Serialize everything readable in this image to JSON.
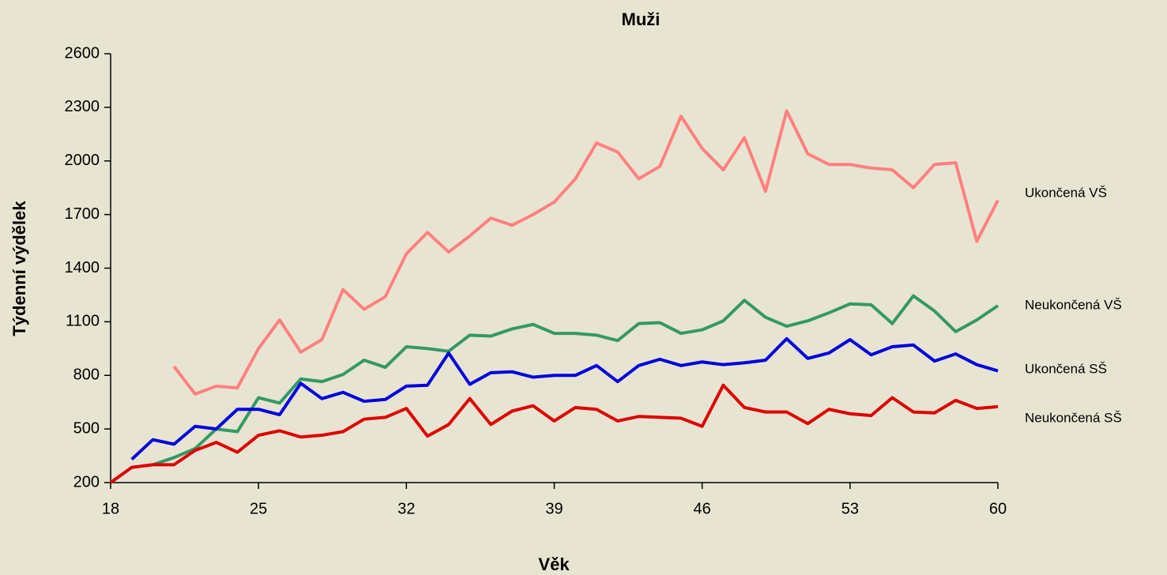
{
  "chart_data": {
    "type": "line",
    "title": "Muži",
    "x_label": "Věk",
    "y_label": "Týdenní výdělek",
    "x": [
      18,
      19,
      20,
      21,
      22,
      23,
      24,
      25,
      26,
      27,
      28,
      29,
      30,
      31,
      32,
      33,
      34,
      35,
      36,
      37,
      38,
      39,
      40,
      41,
      42,
      43,
      44,
      45,
      46,
      47,
      48,
      49,
      50,
      51,
      52,
      53,
      54,
      55,
      56,
      57,
      58,
      59,
      60
    ],
    "xlim": [
      18,
      60
    ],
    "xticks": [
      18,
      25,
      32,
      39,
      46,
      53,
      60
    ],
    "ylim": [
      200,
      2600
    ],
    "yticks": [
      200,
      500,
      800,
      1100,
      1400,
      1700,
      2000,
      2300,
      2600
    ],
    "series": [
      {
        "name": "Ukončená VŠ",
        "color": "#ff8080",
        "values": [
          null,
          null,
          null,
          850,
          695,
          740,
          730,
          950,
          1110,
          930,
          1000,
          1280,
          1170,
          1240,
          1480,
          1600,
          1490,
          1580,
          1680,
          1640,
          1700,
          1770,
          1900,
          2100,
          2050,
          1900,
          1970,
          2250,
          2070,
          1950,
          2130,
          1830,
          2280,
          2040,
          1980,
          1980,
          1960,
          1950,
          1850,
          1980,
          1990,
          1550,
          1780
        ]
      },
      {
        "name": "Neukončená VŠ",
        "color": "#339966",
        "values": [
          null,
          null,
          300,
          340,
          390,
          500,
          485,
          675,
          645,
          780,
          765,
          805,
          885,
          845,
          960,
          950,
          935,
          1025,
          1020,
          1060,
          1085,
          1035,
          1035,
          1025,
          995,
          1090,
          1095,
          1035,
          1055,
          1105,
          1220,
          1125,
          1075,
          1105,
          1150,
          1200,
          1195,
          1090,
          1245,
          1160,
          1045,
          1110,
          1190
        ]
      },
      {
        "name": "Ukončená SŠ",
        "color": "#0000dd",
        "values": [
          null,
          330,
          440,
          415,
          515,
          500,
          610,
          610,
          580,
          755,
          670,
          705,
          655,
          665,
          740,
          745,
          925,
          750,
          815,
          820,
          790,
          800,
          800,
          855,
          765,
          855,
          890,
          855,
          875,
          860,
          870,
          885,
          1005,
          895,
          925,
          1000,
          915,
          960,
          970,
          880,
          920,
          860,
          825
        ]
      },
      {
        "name": "Neukončená SŠ",
        "color": "#dd0000",
        "values": [
          200,
          285,
          300,
          300,
          380,
          425,
          370,
          465,
          490,
          455,
          465,
          485,
          555,
          565,
          615,
          460,
          525,
          670,
          525,
          600,
          630,
          545,
          620,
          610,
          545,
          570,
          565,
          560,
          515,
          745,
          620,
          595,
          595,
          530,
          610,
          585,
          575,
          675,
          595,
          590,
          660,
          615,
          625
        ]
      }
    ]
  }
}
